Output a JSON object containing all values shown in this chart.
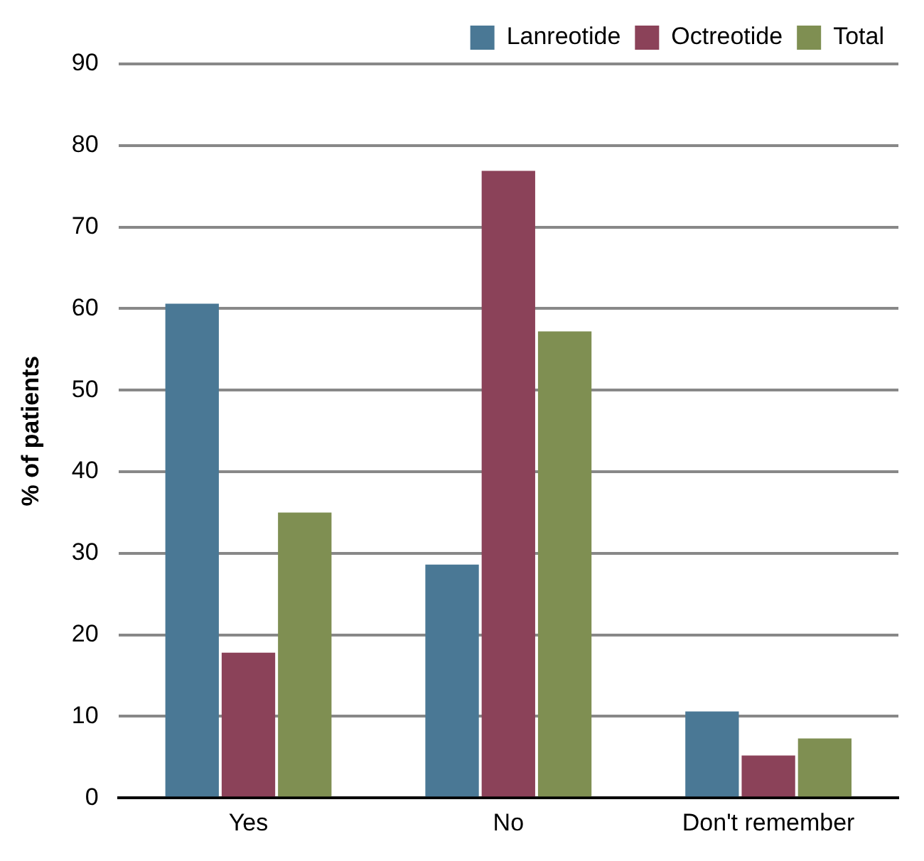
{
  "chart_data": {
    "type": "bar",
    "ylabel": "% of patients",
    "categories": [
      "Yes",
      "No",
      "Don't remember"
    ],
    "series": [
      {
        "name": "Lanreotide",
        "color": "#4a7895",
        "values": [
          60.6,
          28.6,
          10.6
        ]
      },
      {
        "name": "Octreotide",
        "color": "#8b4259",
        "values": [
          17.8,
          76.9,
          5.2
        ]
      },
      {
        "name": "Total",
        "color": "#7f8f52",
        "values": [
          35.0,
          57.2,
          7.3
        ]
      }
    ],
    "ylim": [
      0,
      90
    ],
    "yticks": [
      0,
      10,
      20,
      30,
      40,
      50,
      60,
      70,
      80,
      90
    ],
    "grid": "y",
    "legend": "top right"
  }
}
